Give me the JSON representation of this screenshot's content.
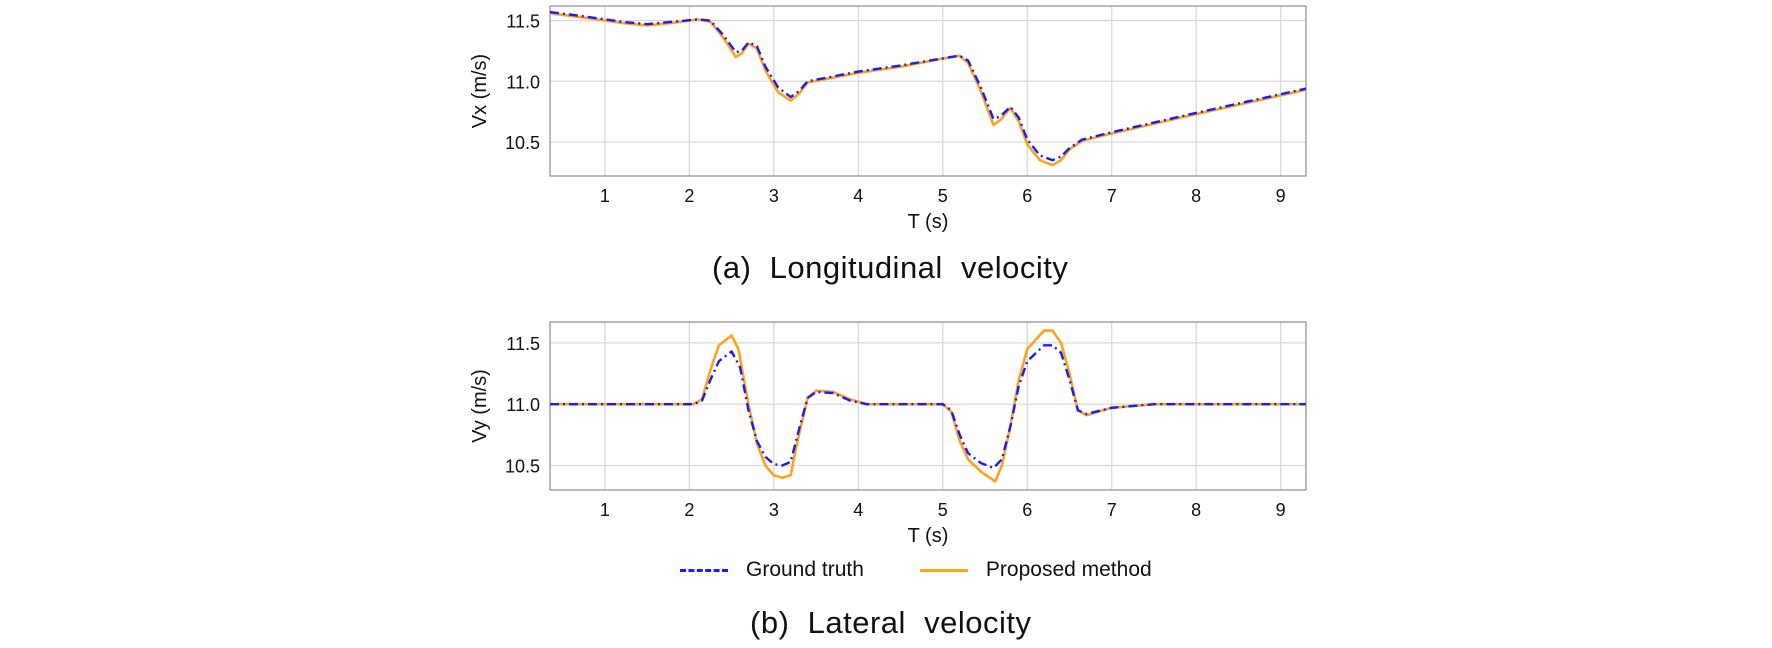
{
  "figure": {
    "legend": [
      {
        "label": "Ground truth",
        "color": "#1a1aff",
        "style": "dash-dot"
      },
      {
        "label": "Proposed method",
        "color": "#ffa31a",
        "style": "solid"
      }
    ]
  },
  "chart_data": [
    {
      "type": "line",
      "caption": "(a)  Longitudinal  velocity",
      "xlabel": "T (s)",
      "ylabel": "Vx (m/s)",
      "xlim": [
        0.35,
        9.3
      ],
      "ylim": [
        10.22,
        11.62
      ],
      "xticks": [
        1,
        2,
        3,
        4,
        5,
        6,
        7,
        8,
        9
      ],
      "yticks": [
        10.5,
        11.0,
        11.5
      ],
      "ytick_labels": [
        "10.5",
        "11.0",
        "11.5"
      ],
      "grid": true,
      "series": [
        {
          "name": "Ground truth",
          "color": "#1a1aff",
          "style": "dash-dot",
          "x": [
            0.35,
            0.8,
            1.2,
            1.5,
            1.8,
            2.1,
            2.25,
            2.4,
            2.55,
            2.62,
            2.7,
            2.8,
            2.9,
            3.05,
            3.2,
            3.3,
            3.4,
            4.0,
            4.5,
            5.1,
            5.2,
            5.3,
            5.45,
            5.6,
            5.68,
            5.8,
            5.9,
            6.0,
            6.15,
            6.3,
            6.4,
            6.5,
            6.65,
            7.0,
            8.0,
            9.3
          ],
          "y": [
            11.57,
            11.53,
            11.49,
            11.47,
            11.49,
            11.51,
            11.5,
            11.38,
            11.24,
            11.25,
            11.32,
            11.29,
            11.12,
            10.95,
            10.87,
            10.92,
            11.0,
            11.08,
            11.13,
            11.2,
            11.21,
            11.17,
            10.95,
            10.69,
            10.71,
            10.79,
            10.7,
            10.52,
            10.39,
            10.35,
            10.38,
            10.45,
            10.52,
            10.58,
            10.74,
            10.94
          ]
        },
        {
          "name": "Proposed method",
          "color": "#ffa31a",
          "style": "solid",
          "x": [
            0.35,
            0.8,
            1.2,
            1.5,
            1.8,
            2.1,
            2.25,
            2.4,
            2.55,
            2.62,
            2.7,
            2.8,
            2.9,
            3.05,
            3.2,
            3.3,
            3.4,
            4.0,
            4.5,
            5.1,
            5.2,
            5.3,
            5.45,
            5.6,
            5.68,
            5.8,
            5.9,
            6.0,
            6.15,
            6.3,
            6.4,
            6.5,
            6.65,
            7.0,
            8.0,
            9.3
          ],
          "y": [
            11.56,
            11.52,
            11.48,
            11.46,
            11.48,
            11.51,
            11.49,
            11.36,
            11.2,
            11.23,
            11.31,
            11.27,
            11.09,
            10.91,
            10.84,
            10.9,
            10.99,
            11.07,
            11.12,
            11.2,
            11.21,
            11.15,
            10.92,
            10.64,
            10.68,
            10.78,
            10.67,
            10.48,
            10.35,
            10.31,
            10.35,
            10.44,
            10.51,
            10.57,
            10.73,
            10.93
          ]
        }
      ]
    },
    {
      "type": "line",
      "caption": "(b)  Lateral  velocity",
      "xlabel": "T (s)",
      "ylabel": "Vy (m/s)",
      "xlim": [
        0.35,
        9.3
      ],
      "ylim": [
        10.3,
        11.67
      ],
      "xticks": [
        1,
        2,
        3,
        4,
        5,
        6,
        7,
        8,
        9
      ],
      "yticks": [
        10.5,
        11.0,
        11.5
      ],
      "ytick_labels": [
        "10.5",
        "11.0",
        "11.5"
      ],
      "grid": true,
      "series": [
        {
          "name": "Ground truth",
          "color": "#1a1aff",
          "style": "dash-dot",
          "x": [
            0.35,
            2.05,
            2.15,
            2.25,
            2.35,
            2.5,
            2.6,
            2.7,
            2.8,
            2.9,
            3.0,
            3.1,
            3.2,
            3.3,
            3.4,
            3.5,
            3.7,
            3.9,
            4.1,
            5.0,
            5.1,
            5.2,
            5.3,
            5.45,
            5.6,
            5.7,
            5.8,
            5.9,
            6.0,
            6.2,
            6.3,
            6.4,
            6.5,
            6.6,
            6.7,
            7.0,
            7.5,
            9.3
          ],
          "y": [
            11.0,
            11.0,
            11.03,
            11.2,
            11.35,
            11.43,
            11.3,
            10.95,
            10.7,
            10.57,
            10.51,
            10.5,
            10.53,
            10.8,
            11.05,
            11.1,
            11.09,
            11.03,
            11.0,
            11.0,
            10.95,
            10.75,
            10.6,
            10.52,
            10.48,
            10.55,
            10.82,
            11.15,
            11.35,
            11.48,
            11.48,
            11.42,
            11.2,
            10.95,
            10.92,
            10.97,
            11.0,
            11.0
          ]
        },
        {
          "name": "Proposed method",
          "color": "#ffa31a",
          "style": "solid",
          "x": [
            0.35,
            2.05,
            2.15,
            2.25,
            2.35,
            2.5,
            2.58,
            2.7,
            2.8,
            2.9,
            3.0,
            3.1,
            3.2,
            3.28,
            3.4,
            3.5,
            3.7,
            3.9,
            4.1,
            5.0,
            5.1,
            5.2,
            5.3,
            5.45,
            5.62,
            5.7,
            5.8,
            5.9,
            6.0,
            6.2,
            6.3,
            6.4,
            6.5,
            6.6,
            6.7,
            7.0,
            7.5,
            9.3
          ],
          "y": [
            11.0,
            11.0,
            11.04,
            11.28,
            11.48,
            11.56,
            11.45,
            11.0,
            10.68,
            10.5,
            10.42,
            10.4,
            10.42,
            10.7,
            11.05,
            11.11,
            11.1,
            11.04,
            11.0,
            11.0,
            10.94,
            10.7,
            10.55,
            10.45,
            10.37,
            10.5,
            10.82,
            11.2,
            11.45,
            11.6,
            11.6,
            11.5,
            11.25,
            10.95,
            10.91,
            10.97,
            11.0,
            11.0
          ]
        }
      ]
    }
  ]
}
